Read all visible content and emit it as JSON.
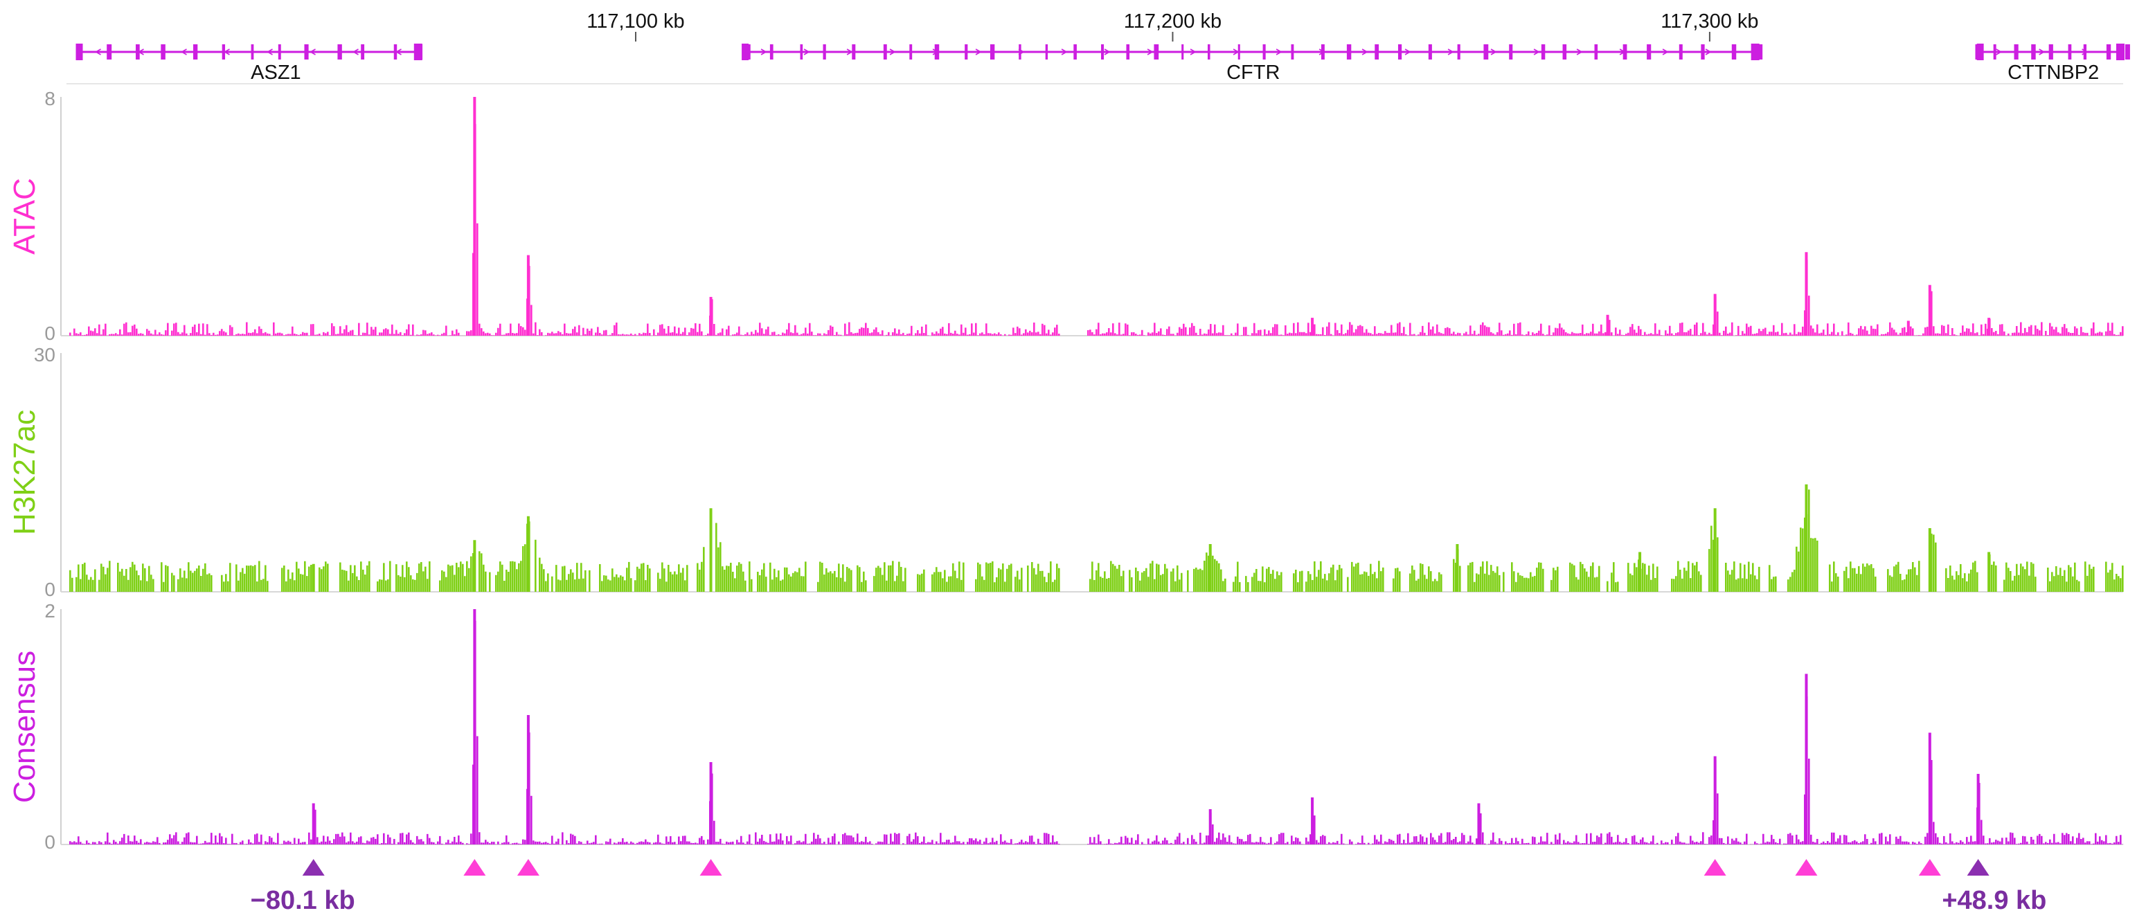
{
  "chart_data": {
    "type": "genome-browser-tracks",
    "ruler": {
      "ticks": [
        {
          "pos_kb": 117100,
          "label": "117,100 kb"
        },
        {
          "pos_kb": 117200,
          "label": "117,200 kb"
        },
        {
          "pos_kb": 117300,
          "label": "117,300 kb"
        }
      ]
    },
    "genes": [
      {
        "name": "ASZ1",
        "start_kb": 116996,
        "end_kb": 117060,
        "label_pos_kb": 117033
      },
      {
        "name": "CFTR",
        "start_kb": 117120,
        "end_kb": 117309,
        "label_pos_kb": 117215
      },
      {
        "name": "CTTNBP2",
        "start_kb": 117350,
        "end_kb": 117377,
        "label_pos_kb": 117364
      }
    ],
    "tracks": [
      {
        "name": "ATAC",
        "color": "#ff2fd0",
        "ylim": [
          0,
          8
        ],
        "ymax_label": "8",
        "ymin_label": "0",
        "peaks": [
          {
            "pos_kb": 117070,
            "value": 8.0
          },
          {
            "pos_kb": 117080,
            "value": 2.7
          },
          {
            "pos_kb": 117114,
            "value": 1.3
          },
          {
            "pos_kb": 117301,
            "value": 1.4
          },
          {
            "pos_kb": 117318,
            "value": 2.8
          },
          {
            "pos_kb": 117341,
            "value": 1.7
          },
          {
            "pos_kb": 117337,
            "value": 0.5
          },
          {
            "pos_kb": 117352,
            "value": 0.6
          },
          {
            "pos_kb": 117226,
            "value": 0.6
          },
          {
            "pos_kb": 117281,
            "value": 0.7
          }
        ],
        "background": 0.35,
        "gaps_kb": [
          [
            117179,
            117184
          ]
        ]
      },
      {
        "name": "H3K27ac",
        "color": "#7fd016",
        "ylim": [
          0,
          30
        ],
        "ymax_label": "30",
        "ymin_label": "0",
        "peaks": [
          {
            "pos_kb": 117070,
            "value": 6.5
          },
          {
            "pos_kb": 117080,
            "value": 9.5
          },
          {
            "pos_kb": 117114,
            "value": 10.5
          },
          {
            "pos_kb": 117301,
            "value": 10.5
          },
          {
            "pos_kb": 117318,
            "value": 13.5
          },
          {
            "pos_kb": 117341,
            "value": 8.0
          },
          {
            "pos_kb": 117207,
            "value": 6.0
          },
          {
            "pos_kb": 117253,
            "value": 6.0
          },
          {
            "pos_kb": 117287,
            "value": 5.0
          },
          {
            "pos_kb": 117352,
            "value": 5.0
          },
          {
            "pos_kb": 117040,
            "value": 3.5
          }
        ],
        "background": 3.0,
        "gaps_kb": [
          [
            117179,
            117184
          ]
        ]
      },
      {
        "name": "Consensus",
        "color": "#cc1ee0",
        "ylim": [
          0,
          2
        ],
        "ymax_label": "2",
        "ymin_label": "0",
        "peaks": [
          {
            "pos_kb": 117070,
            "value": 2.0
          },
          {
            "pos_kb": 117080,
            "value": 1.1
          },
          {
            "pos_kb": 117114,
            "value": 0.7
          },
          {
            "pos_kb": 117301,
            "value": 0.75
          },
          {
            "pos_kb": 117318,
            "value": 1.45
          },
          {
            "pos_kb": 117341,
            "value": 0.95
          },
          {
            "pos_kb": 117350,
            "value": 0.6
          },
          {
            "pos_kb": 117040,
            "value": 0.35
          },
          {
            "pos_kb": 117226,
            "value": 0.4
          },
          {
            "pos_kb": 117207,
            "value": 0.3
          },
          {
            "pos_kb": 117257,
            "value": 0.35
          }
        ],
        "background": 0.08,
        "gaps_kb": [
          [
            117179,
            117184
          ]
        ]
      }
    ],
    "markers": [
      {
        "pos_kb": 117040,
        "color": "#8b2fb0"
      },
      {
        "pos_kb": 117070,
        "color": "#ff3ed6"
      },
      {
        "pos_kb": 117080,
        "color": "#ff3ed6"
      },
      {
        "pos_kb": 117114,
        "color": "#ff3ed6"
      },
      {
        "pos_kb": 117301,
        "color": "#ff3ed6"
      },
      {
        "pos_kb": 117318,
        "color": "#ff3ed6"
      },
      {
        "pos_kb": 117341,
        "color": "#ff3ed6"
      },
      {
        "pos_kb": 117350,
        "color": "#8b2fb0"
      }
    ],
    "distance_labels": [
      {
        "text": "−80.1 kb",
        "pos_kb": 117038
      },
      {
        "text": "+48.9 kb",
        "pos_kb": 117353
      }
    ],
    "xlim_kb": [
      116994,
      117377
    ]
  }
}
